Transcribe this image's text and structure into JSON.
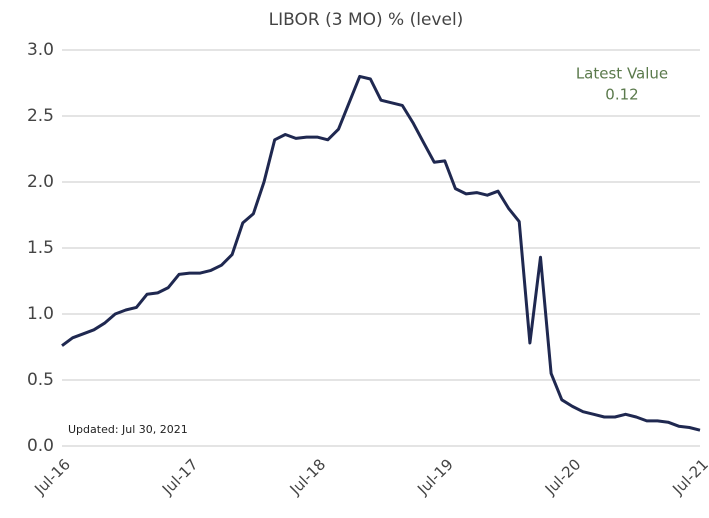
{
  "chart_data": {
    "type": "line",
    "title": "LIBOR (3 MO) % (level)",
    "categories": [
      "Jul-16",
      null,
      null,
      null,
      null,
      null,
      null,
      null,
      null,
      null,
      null,
      null,
      "Jul-17",
      null,
      null,
      null,
      null,
      null,
      null,
      null,
      null,
      null,
      null,
      null,
      "Jul-18",
      null,
      null,
      null,
      null,
      null,
      null,
      null,
      null,
      null,
      null,
      null,
      "Jul-19",
      null,
      null,
      null,
      null,
      null,
      null,
      null,
      null,
      null,
      null,
      null,
      "Jul-20",
      null,
      null,
      null,
      null,
      null,
      null,
      null,
      null,
      null,
      null,
      null,
      "Jul-21"
    ],
    "series": [
      {
        "name": "LIBOR (3 MO)",
        "color": "#1f2850",
        "values": [
          0.76,
          0.82,
          0.85,
          0.88,
          0.93,
          1.0,
          1.03,
          1.05,
          1.15,
          1.16,
          1.2,
          1.3,
          1.31,
          1.31,
          1.33,
          1.37,
          1.45,
          1.69,
          1.76,
          2.0,
          2.32,
          2.36,
          2.33,
          2.34,
          2.34,
          2.32,
          2.4,
          2.6,
          2.8,
          2.78,
          2.62,
          2.6,
          2.58,
          2.45,
          2.3,
          2.15,
          2.16,
          1.95,
          1.91,
          1.92,
          1.9,
          1.93,
          1.8,
          1.7,
          0.78,
          1.43,
          0.55,
          0.35,
          0.3,
          0.26,
          0.24,
          0.22,
          0.22,
          0.24,
          0.22,
          0.19,
          0.19,
          0.18,
          0.15,
          0.14,
          0.12
        ]
      }
    ],
    "ylim": [
      0,
      3
    ],
    "yticks": [
      {
        "value": 0,
        "label": "0.0"
      },
      0.5,
      {
        "value": 1,
        "label": "1.0"
      },
      1.5,
      {
        "value": 2,
        "label": "2.0"
      },
      2.5,
      {
        "value": 3,
        "label": "3.0"
      }
    ],
    "grid": true,
    "annotations": {
      "latest_label": "Latest Value",
      "latest_value": 0.12,
      "updated": "Updated: Jul 30, 2021",
      "color": "#5b7a4c"
    }
  }
}
